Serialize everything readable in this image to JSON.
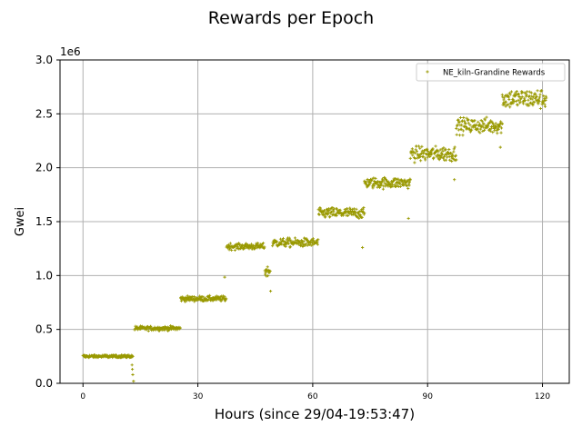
{
  "chart_data": {
    "type": "scatter",
    "title": "Rewards per Epoch",
    "xlabel": "Hours (since 29/04-19:53:47)",
    "ylabel": "Gwei",
    "y_offset_text": "1e6",
    "xlim": [
      -6,
      127
    ],
    "ylim": [
      0,
      3000000
    ],
    "x_ticks": [
      0,
      30,
      60,
      90,
      120
    ],
    "y_ticks": [
      0,
      500000,
      1000000,
      1500000,
      2000000,
      2500000,
      3000000
    ],
    "y_tick_labels": [
      "0.0",
      "0.5",
      "1.0",
      "1.5",
      "2.0",
      "2.5",
      "3.0"
    ],
    "grid": true,
    "legend_position": "top-right",
    "series": [
      {
        "name": "NE_kiln-Grandine Rewards",
        "color": "#999900",
        "marker": "plus",
        "segments": [
          {
            "x_start": 0,
            "x_end": 13,
            "y_mean": 250000,
            "y_spread": 8000,
            "y_low": 240000,
            "y_high": 265000
          },
          {
            "x_start": 13.5,
            "x_end": 25.5,
            "y_mean": 510000,
            "y_spread": 10000,
            "y_low": 485000,
            "y_high": 535000
          },
          {
            "x_start": 25.5,
            "x_end": 37.5,
            "y_mean": 785000,
            "y_spread": 12000,
            "y_low": 755000,
            "y_high": 815000
          },
          {
            "x_start": 37.5,
            "x_end": 47.5,
            "y_mean": 1270000,
            "y_spread": 15000,
            "y_low": 1235000,
            "y_high": 1300000
          },
          {
            "x_start": 47.5,
            "x_end": 49,
            "y_mean": 1040000,
            "y_spread": 30000,
            "y_low": 980000,
            "y_high": 1080000
          },
          {
            "x_start": 49.5,
            "x_end": 61.5,
            "y_mean": 1305000,
            "y_spread": 20000,
            "y_low": 1250000,
            "y_high": 1350000
          },
          {
            "x_start": 61.5,
            "x_end": 73.5,
            "y_mean": 1580000,
            "y_spread": 25000,
            "y_low": 1510000,
            "y_high": 1630000
          },
          {
            "x_start": 73.5,
            "x_end": 85.5,
            "y_mean": 1860000,
            "y_spread": 25000,
            "y_low": 1780000,
            "y_high": 1920000
          },
          {
            "x_start": 85.5,
            "x_end": 97.5,
            "y_mean": 2130000,
            "y_spread": 35000,
            "y_low": 2000000,
            "y_high": 2200000
          },
          {
            "x_start": 97.5,
            "x_end": 109.5,
            "y_mean": 2390000,
            "y_spread": 35000,
            "y_low": 2260000,
            "y_high": 2480000
          },
          {
            "x_start": 109.5,
            "x_end": 121,
            "y_mean": 2640000,
            "y_spread": 45000,
            "y_low": 2500000,
            "y_high": 2750000
          }
        ],
        "outliers": [
          {
            "x": 12.8,
            "y": 170000
          },
          {
            "x": 12.9,
            "y": 130000
          },
          {
            "x": 13.0,
            "y": 80000
          },
          {
            "x": 13.2,
            "y": 20000
          },
          {
            "x": 37.0,
            "y": 985000
          },
          {
            "x": 49.0,
            "y": 855000
          },
          {
            "x": 73.0,
            "y": 1260000
          },
          {
            "x": 85.0,
            "y": 1530000
          },
          {
            "x": 97.0,
            "y": 1890000
          },
          {
            "x": 109.0,
            "y": 2190000
          }
        ]
      }
    ]
  }
}
